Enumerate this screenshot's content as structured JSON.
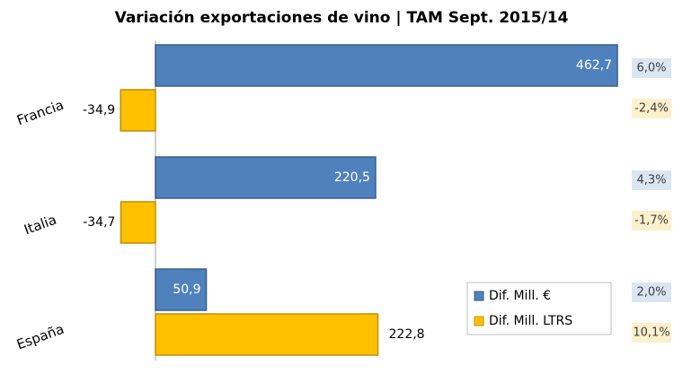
{
  "chart_data": {
    "type": "hbar",
    "title": "Variación exportaciones de vino | TAM Sept. 2015/14",
    "categories": [
      "Francia",
      "Italia",
      "España"
    ],
    "series": [
      {
        "name": "Dif. Mill. €",
        "color": "#4f81bd",
        "values": [
          462.7,
          220.5,
          50.9
        ],
        "value_labels": [
          "462,7",
          "220,5",
          "50,9"
        ],
        "annotations": [
          "6,0%",
          "4,3%",
          "2,0%"
        ]
      },
      {
        "name": "Dif. Mill. LTRS",
        "color": "#ffc000",
        "values": [
          -34.9,
          -34.7,
          222.8
        ],
        "value_labels": [
          "-34,9",
          "-34,7",
          "222,8"
        ],
        "annotations": [
          "-2,4%",
          "-1,7%",
          "10,1%"
        ]
      }
    ]
  }
}
